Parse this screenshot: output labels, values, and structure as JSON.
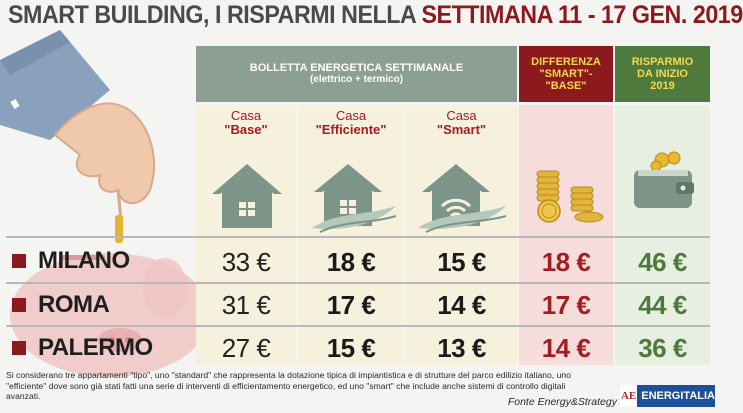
{
  "title": {
    "part1": "SMART BUILDING, I RISPARMI NELLA ",
    "part2": "SETTIMANA 11 - 17 GEN. 2019"
  },
  "header": {
    "bolletta_line1": "BOLLETTA ENERGETICA SETTIMANALE",
    "bolletta_line2": "(elettrico + termico)",
    "diff_line1": "DIFFERENZA",
    "diff_line2": "\"SMART\"-",
    "diff_line3": "\"BASE\"",
    "risp_line1": "RISPARMIO",
    "risp_line2": "DA INIZIO",
    "risp_line3": "2019"
  },
  "columns": {
    "base": {
      "word": "Casa",
      "type": "\"Base\""
    },
    "eff": {
      "word": "Casa",
      "type": "\"Efficiente\""
    },
    "smart": {
      "word": "Casa",
      "type": "\"Smart\""
    }
  },
  "icons": {
    "base": "house-icon",
    "eff": "efficient-house-icon",
    "smart": "smart-house-wifi-icon",
    "diff": "coins-icon",
    "risp": "wallet-icon",
    "illustration": "piggy-bank-hand-icon"
  },
  "colors": {
    "accent_red": "#8c1a1c",
    "green": "#4f7a3e",
    "header_gray": "#8b9f93",
    "yellow": "#f6d84a"
  },
  "chart_data": {
    "type": "table",
    "title": "SMART BUILDING, I RISPARMI NELLA SETTIMANA 11 - 17 GEN. 2019",
    "columns": [
      "Casa \"Base\"",
      "Casa \"Efficiente\"",
      "Casa \"Smart\"",
      "DIFFERENZA \"SMART\"-\"BASE\"",
      "RISPARMIO DA INIZIO 2019"
    ],
    "rows": [
      {
        "city": "MILANO",
        "base": "33 €",
        "eff": "18 €",
        "smart": "15 €",
        "diff": "18 €",
        "risp": "46 €"
      },
      {
        "city": "ROMA",
        "base": "31 €",
        "eff": "17 €",
        "smart": "14 €",
        "diff": "17 €",
        "risp": "44 €"
      },
      {
        "city": "PALERMO",
        "base": "27 €",
        "eff": "15 €",
        "smart": "13 €",
        "diff": "14 €",
        "risp": "36 €"
      }
    ]
  },
  "footer": {
    "note": "Si considerano tre appartamenti \"tipo\", uno \"standard\" che rappresenta la dotazione tipica di impiantistica e di strutture del parco edilizio italiano, uno \"efficiente\" dove sono già stati fatti una serie di interventi di efficientamento energetico, ed uno \"smart\" che include anche sistemi di controllo digitali avanzati.",
    "source": "Fonte Energy&Strategy",
    "logo_mark": "AE",
    "logo_text": "ENERGITALIA"
  }
}
